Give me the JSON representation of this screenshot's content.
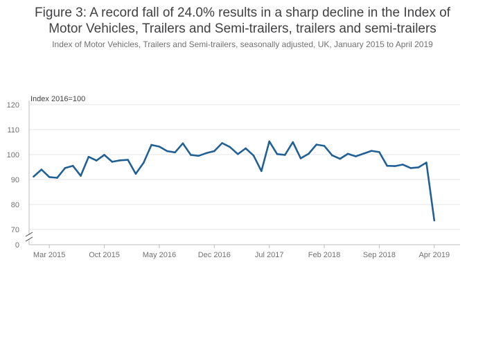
{
  "header": {
    "title_line1": "Figure 3: A record fall of 24.0% results in a sharp decline in the Index of",
    "title_line2": "Motor Vehicles, Trailers and Semi-trailers, trailers and semi-trailers",
    "subtitle": "Index of Motor Vehicles, Trailers and Semi-trailers, seasonally adjusted, UK, January 2015 to April 2019"
  },
  "colors": {
    "line": "#206095",
    "grid": "#e6e6e6",
    "axis": "#bcbcbd"
  },
  "chart_data": {
    "type": "line",
    "ylabel": "Index 2016=100",
    "ylim": [
      0,
      120
    ],
    "axis_break": true,
    "yticks": [
      120,
      110,
      100,
      90,
      80,
      70,
      0
    ],
    "xticks": [
      "Mar 2015",
      "Oct 2015",
      "May 2016",
      "Dec 2016",
      "Jul 2017",
      "Feb 2018",
      "Sep 2018",
      "Apr 2019"
    ],
    "xtick_index": [
      2,
      9,
      16,
      23,
      30,
      37,
      44,
      51
    ],
    "grid": true,
    "series": [
      {
        "values": [
          91.2,
          94.0,
          91.0,
          90.7,
          94.6,
          95.5,
          91.5,
          99.1,
          97.6,
          99.9,
          97.1,
          97.7,
          97.9,
          92.3,
          96.7,
          103.9,
          103.2,
          101.4,
          100.9,
          104.5,
          99.9,
          99.5,
          100.6,
          101.4,
          104.6,
          103.0,
          100.2,
          102.5,
          99.6,
          93.4,
          105.3,
          100.2,
          99.9,
          105.0,
          98.5,
          100.3,
          104.0,
          103.5,
          99.7,
          98.3,
          100.3,
          99.3,
          100.4,
          101.5,
          101.0,
          95.5,
          95.4,
          96.0,
          94.6,
          94.9,
          96.8,
          73.6
        ]
      }
    ]
  }
}
